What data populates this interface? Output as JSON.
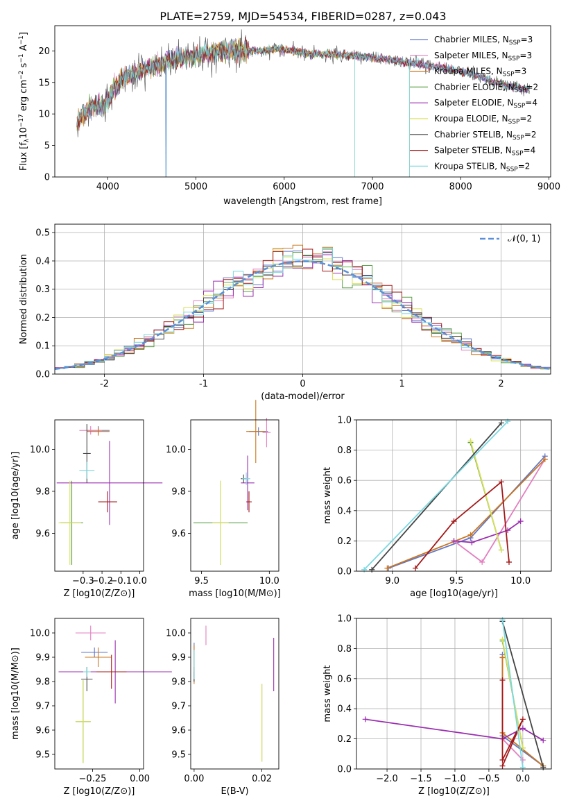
{
  "figure": {
    "title": "PLATE=2759, MJD=54534, FIBERID=0287, z=0.043"
  },
  "chart_data": [
    {
      "id": "spectrum",
      "type": "line",
      "xlabel": "wavelength [Angstrom, rest frame]",
      "ylabel": "Flux [f_λ10^-17 erg cm^-2 s^-1 A^-1]",
      "xlim": [
        3400,
        9020
      ],
      "ylim": [
        0,
        24
      ],
      "xticks": [
        4000,
        5000,
        6000,
        7000,
        8000,
        9000
      ],
      "yticks": [
        0,
        5,
        10,
        15,
        20
      ],
      "grid": false,
      "legend_position": "right",
      "continuum_anchors": {
        "x": [
          3650,
          3750,
          3850,
          3950,
          4050,
          4150,
          4300,
          4500,
          4700,
          4900,
          5100,
          5300,
          5500,
          5700,
          5900,
          6100,
          6300,
          6500,
          6700,
          6900,
          7100,
          7300,
          7500,
          7700,
          7900,
          8100,
          8300,
          8500,
          8700
        ],
        "y": [
          8.5,
          10.5,
          11.5,
          11.0,
          13.5,
          15.5,
          16.5,
          17.5,
          18.5,
          19.0,
          19.5,
          20.0,
          20.2,
          20.0,
          20.3,
          20.0,
          19.5,
          19.5,
          19.3,
          19.0,
          18.8,
          18.3,
          18.0,
          17.5,
          17.0,
          16.5,
          15.5,
          14.5,
          14.0
        ]
      },
      "dips": [
        {
          "x": 4660,
          "y": 0
        },
        {
          "x": 6800,
          "y": 0
        },
        {
          "x": 7420,
          "y": 0
        }
      ],
      "series": [
        {
          "name": "Chabrier MILES, N_SSP=3",
          "label_main": "Chabrier MILES, N",
          "sub": "SSP",
          "eq": "=3",
          "color": "#6077c8"
        },
        {
          "name": "Salpeter MILES, N_SSP=3",
          "label_main": "Salpeter MILES, N",
          "sub": "SSP",
          "eq": "=3",
          "color": "#e37fc0"
        },
        {
          "name": "Kroupa MILES, N_SSP=3",
          "label_main": "Kroupa MILES, N",
          "sub": "SSP",
          "eq": "=3",
          "color": "#c9761f"
        },
        {
          "name": "Chabrier ELODIE, N_SSP=2",
          "label_main": "Chabrier ELODIE, N",
          "sub": "SSP",
          "eq": "=2",
          "color": "#5ea048"
        },
        {
          "name": "Salpeter ELODIE, N_SSP=4",
          "label_main": "Salpeter ELODIE, N",
          "sub": "SSP",
          "eq": "=4",
          "color": "#9b2fb0"
        },
        {
          "name": "Kroupa ELODIE, N_SSP=2",
          "label_main": "Kroupa ELODIE, N",
          "sub": "SSP",
          "eq": "=2",
          "color": "#d9e05a"
        },
        {
          "name": "Chabrier STELIB, N_SSP=2",
          "label_main": "Chabrier STELIB, N",
          "sub": "SSP",
          "eq": "=2",
          "color": "#444444"
        },
        {
          "name": "Salpeter STELIB, N_SSP=4",
          "label_main": "Salpeter STELIB, N",
          "sub": "SSP",
          "eq": "=4",
          "color": "#a31818"
        },
        {
          "name": "Kroupa STELIB, N_SSP=2",
          "label_main": "Kroupa STELIB, N",
          "sub": "SSP",
          "eq": "=2",
          "color": "#7ad8e0"
        }
      ]
    },
    {
      "id": "residuals",
      "type": "line",
      "xlabel": "(data-model)/error",
      "ylabel": "Normed distribution",
      "xlim": [
        -2.5,
        2.5
      ],
      "ylim": [
        0,
        0.53
      ],
      "xticks": [
        -2,
        -1,
        0,
        1,
        2
      ],
      "yticks": [
        0.0,
        0.1,
        0.2,
        0.3,
        0.4,
        0.5
      ],
      "grid": true,
      "legend_position": "top-right",
      "reference": {
        "name": "N(0,1)",
        "label": "𝒩(0, 1)",
        "color": "#5b8fd9",
        "style": "dashed"
      },
      "bin_width": 0.1,
      "histogram_colors": [
        "#6077c8",
        "#e37fc0",
        "#c9761f",
        "#5ea048",
        "#9b2fb0",
        "#d9e05a",
        "#444444",
        "#a31818",
        "#7ad8e0"
      ]
    },
    {
      "id": "age-vs-Z",
      "type": "scatter",
      "xlabel": "Z [log10(Z/Z⊙)]",
      "ylabel": "age  [log10(age/yr)]",
      "xlim": [
        -0.45,
        0.02
      ],
      "ylim": [
        9.42,
        10.14
      ],
      "xticks": [
        -0.3,
        -0.2,
        -0.1,
        0.0
      ],
      "yticks": [
        9.6,
        9.8,
        10.0
      ],
      "grid": false,
      "points": [
        {
          "x": -0.22,
          "y": 10.09,
          "xerr": 0.06,
          "yerr": 0.02,
          "color": "#6077c8"
        },
        {
          "x": -0.26,
          "y": 10.09,
          "xerr": 0.06,
          "yerr": 0.02,
          "color": "#e37fc0"
        },
        {
          "x": -0.22,
          "y": 10.085,
          "xerr": 0.06,
          "yerr": 0.02,
          "color": "#c9761f"
        },
        {
          "x": -0.36,
          "y": 9.65,
          "xerr": 0.06,
          "yerr": 0.2,
          "color": "#5ea048"
        },
        {
          "x": -0.16,
          "y": 9.84,
          "xerr": 0.28,
          "yerr": 0.2,
          "color": "#9b2fb0"
        },
        {
          "x": -0.37,
          "y": 9.65,
          "xerr": 0.06,
          "yerr": 0.2,
          "color": "#d9e05a"
        },
        {
          "x": -0.28,
          "y": 9.98,
          "xerr": 0.02,
          "yerr": 0.14,
          "color": "#444444"
        },
        {
          "x": -0.17,
          "y": 9.75,
          "xerr": 0.05,
          "yerr": 0.05,
          "color": "#a31818"
        },
        {
          "x": -0.28,
          "y": 9.9,
          "xerr": 0.04,
          "yerr": 0.04,
          "color": "#7ad8e0"
        }
      ]
    },
    {
      "id": "age-vs-mass",
      "type": "scatter",
      "xlabel": "mass [log10(M/M⊙)]",
      "ylabel": "",
      "xlim": [
        9.42,
        10.07
      ],
      "ylim": [
        9.42,
        10.14
      ],
      "xticks": [
        9.5,
        10.0
      ],
      "yticks": [
        9.6,
        9.8,
        10.0
      ],
      "grid": false,
      "points": [
        {
          "x": 9.92,
          "y": 10.085,
          "xerr": 0.07,
          "yerr": 0.02,
          "color": "#6077c8"
        },
        {
          "x": 9.98,
          "y": 10.08,
          "xerr": 0.03,
          "yerr": 0.07,
          "color": "#e37fc0"
        },
        {
          "x": 9.9,
          "y": 10.085,
          "xerr": 0.07,
          "yerr": 0.15,
          "color": "#c9761f"
        },
        {
          "x": 9.64,
          "y": 9.65,
          "xerr": 0.2,
          "yerr": 0.2,
          "color": "#5ea048"
        },
        {
          "x": 9.84,
          "y": 9.84,
          "xerr": 0.05,
          "yerr": 0.13,
          "color": "#9b2fb0"
        },
        {
          "x": 9.64,
          "y": 9.65,
          "xerr": 0.06,
          "yerr": 0.2,
          "color": "#d9e05a"
        },
        {
          "x": 9.81,
          "y": 9.86,
          "xerr": 0.02,
          "yerr": 0.02,
          "color": "#444444"
        },
        {
          "x": 9.85,
          "y": 9.75,
          "xerr": 0.02,
          "yerr": 0.05,
          "color": "#a31818"
        },
        {
          "x": 9.83,
          "y": 9.86,
          "xerr": 0.03,
          "yerr": 0.03,
          "color": "#7ad8e0"
        }
      ]
    },
    {
      "id": "massweight-vs-age",
      "type": "line",
      "xlabel": "age  [log10(age/yr)]",
      "ylabel": "mass weight",
      "xlim": [
        8.72,
        10.24
      ],
      "ylim": [
        0,
        1
      ],
      "xticks": [
        9.0,
        9.5,
        10.0
      ],
      "yticks": [
        0.0,
        0.2,
        0.4,
        0.6,
        0.8,
        1.0
      ],
      "grid": true,
      "series": [
        {
          "color": "#6077c8",
          "x": [
            8.97,
            9.61,
            10.19
          ],
          "y": [
            0.02,
            0.22,
            0.76
          ]
        },
        {
          "color": "#e37fc0",
          "x": [
            9.48,
            9.7,
            10.19
          ],
          "y": [
            0.2,
            0.06,
            0.74
          ]
        },
        {
          "color": "#c9761f",
          "x": [
            8.96,
            9.61,
            10.19
          ],
          "y": [
            0.02,
            0.24,
            0.74
          ]
        },
        {
          "color": "#5ea048",
          "x": [
            9.61,
            9.85
          ],
          "y": [
            0.85,
            0.14
          ]
        },
        {
          "color": "#9b2fb0",
          "x": [
            9.48,
            9.62,
            9.9,
            10.0
          ],
          "y": [
            0.2,
            0.19,
            0.27,
            0.33
          ]
        },
        {
          "color": "#d9e05a",
          "x": [
            9.61,
            9.85
          ],
          "y": [
            0.86,
            0.14
          ]
        },
        {
          "color": "#444444",
          "x": [
            8.84,
            9.85
          ],
          "y": [
            0.01,
            0.98
          ]
        },
        {
          "color": "#a31818",
          "x": [
            9.18,
            9.48,
            9.85,
            9.91
          ],
          "y": [
            0.02,
            0.33,
            0.59,
            0.06
          ]
        },
        {
          "color": "#7ad8e0",
          "x": [
            8.78,
            9.9
          ],
          "y": [
            0.01,
            0.99
          ]
        }
      ]
    },
    {
      "id": "mass-vs-Z",
      "type": "scatter",
      "xlabel": "Z [log10(Z/Z⊙)]",
      "ylabel": "mass [log10(M/M⊙)]",
      "xlim": [
        -0.45,
        0.02
      ],
      "ylim": [
        9.44,
        10.06
      ],
      "xticks": [
        -0.25,
        0.0
      ],
      "yticks": [
        9.5,
        9.6,
        9.7,
        9.8,
        9.9,
        10.0
      ],
      "grid": false,
      "points": [
        {
          "x": -0.24,
          "y": 9.92,
          "xerr": 0.07,
          "yerr": 0.02,
          "color": "#6077c8"
        },
        {
          "x": -0.26,
          "y": 10.0,
          "xerr": 0.08,
          "yerr": 0.03,
          "color": "#e37fc0"
        },
        {
          "x": -0.22,
          "y": 9.9,
          "xerr": 0.07,
          "yerr": 0.04,
          "color": "#c9761f"
        },
        {
          "x": -0.3,
          "y": 9.635,
          "xerr": 0.04,
          "yerr": 0.17,
          "color": "#5ea048"
        },
        {
          "x": -0.13,
          "y": 9.84,
          "xerr": 0.3,
          "yerr": 0.13,
          "color": "#9b2fb0"
        },
        {
          "x": -0.3,
          "y": 9.635,
          "xerr": 0.04,
          "yerr": 0.17,
          "color": "#d9e05a"
        },
        {
          "x": -0.28,
          "y": 9.81,
          "xerr": 0.03,
          "yerr": 0.05,
          "color": "#444444"
        },
        {
          "x": -0.15,
          "y": 9.84,
          "xerr": 0.08,
          "yerr": 0.07,
          "color": "#a31818"
        },
        {
          "x": -0.28,
          "y": 9.84,
          "xerr": 0.02,
          "yerr": 0.02,
          "color": "#7ad8e0"
        }
      ]
    },
    {
      "id": "mass-vs-ebv",
      "type": "scatter",
      "xlabel": "E(B-V)",
      "ylabel": "",
      "xlim": [
        -0.001,
        0.025
      ],
      "ylim": [
        9.44,
        10.06
      ],
      "xticks": [
        0.0,
        0.02
      ],
      "yticks": [
        9.5,
        9.6,
        9.7,
        9.8,
        9.9,
        10.0
      ],
      "grid": false,
      "points": [
        {
          "x": 0.0,
          "y": 9.88,
          "xerr": 0,
          "yerr": 0.08,
          "color": "#6077c8"
        },
        {
          "x": 0.0035,
          "y": 9.99,
          "xerr": 0,
          "yerr": 0.04,
          "color": "#e37fc0"
        },
        {
          "x": 0.0,
          "y": 9.87,
          "xerr": 0,
          "yerr": 0.08,
          "color": "#c9761f"
        },
        {
          "x": 0.02,
          "y": 9.63,
          "xerr": 0,
          "yerr": 0.16,
          "color": "#5ea048"
        },
        {
          "x": 0.0235,
          "y": 9.87,
          "xerr": 0,
          "yerr": 0.11,
          "color": "#9b2fb0"
        },
        {
          "x": 0.02,
          "y": 9.63,
          "xerr": 0,
          "yerr": 0.16,
          "color": "#d9e05a"
        },
        {
          "x": 0.0,
          "y": 9.82,
          "xerr": 0,
          "yerr": 0.02,
          "color": "#444444"
        },
        {
          "x": 0.0,
          "y": 9.84,
          "xerr": 0,
          "yerr": 0.02,
          "color": "#a31818"
        },
        {
          "x": 0.0,
          "y": 9.87,
          "xerr": 0,
          "yerr": 0.06,
          "color": "#7ad8e0"
        }
      ]
    },
    {
      "id": "massweight-vs-Z",
      "type": "line",
      "xlabel": "Z [log10(Z/Z⊙)]",
      "ylabel": "mass weight",
      "xlim": [
        -2.45,
        0.42
      ],
      "ylim": [
        0,
        1
      ],
      "xticks": [
        -2.0,
        -1.5,
        -1.0,
        -0.5,
        0.0
      ],
      "yticks": [
        0.0,
        0.2,
        0.4,
        0.6,
        0.8,
        1.0
      ],
      "grid": true,
      "series": [
        {
          "color": "#6077c8",
          "x": [
            -0.3,
            -0.3,
            0.3
          ],
          "y": [
            0.76,
            0.22,
            0.02
          ]
        },
        {
          "color": "#e37fc0",
          "x": [
            -0.3,
            -0.3,
            0.0
          ],
          "y": [
            0.74,
            0.2,
            0.06
          ]
        },
        {
          "color": "#c9761f",
          "x": [
            -0.3,
            -0.3,
            0.3
          ],
          "y": [
            0.74,
            0.24,
            0.02
          ]
        },
        {
          "color": "#5ea048",
          "x": [
            -0.3,
            0.0
          ],
          "y": [
            0.85,
            0.14
          ]
        },
        {
          "color": "#9b2fb0",
          "x": [
            -2.32,
            -0.3,
            0.0,
            0.3
          ],
          "y": [
            0.33,
            0.2,
            0.27,
            0.19
          ]
        },
        {
          "color": "#d9e05a",
          "x": [
            -0.3,
            0.0
          ],
          "y": [
            0.86,
            0.14
          ]
        },
        {
          "color": "#444444",
          "x": [
            -0.3,
            0.3
          ],
          "y": [
            0.98,
            0.01
          ]
        },
        {
          "color": "#a31818",
          "x": [
            -0.3,
            -0.3,
            0.0,
            -0.3
          ],
          "y": [
            0.59,
            0.06,
            0.33,
            0.02
          ]
        },
        {
          "color": "#7ad8e0",
          "x": [
            -0.3,
            0.0
          ],
          "y": [
            0.99,
            0.01
          ]
        }
      ]
    }
  ]
}
